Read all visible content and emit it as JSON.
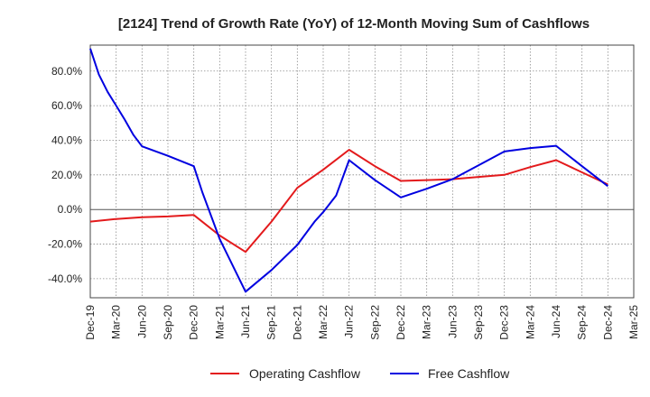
{
  "chart_data": {
    "type": "line",
    "title": "[2124]  Trend of Growth Rate (YoY) of 12-Month Moving Sum of Cashflows",
    "xlabel": "",
    "ylabel": "",
    "x": [
      "Dec-19",
      "Mar-20",
      "Jun-20",
      "Sep-20",
      "Dec-20",
      "Mar-21",
      "Jun-21",
      "Sep-21",
      "Dec-21",
      "Mar-22",
      "Jun-22",
      "Sep-22",
      "Dec-22",
      "Mar-23",
      "Jun-23",
      "Sep-23",
      "Dec-23",
      "Mar-24",
      "Jun-24",
      "Sep-24",
      "Dec-24",
      "Mar-25"
    ],
    "y_ticks": [
      80,
      60,
      40,
      20,
      0,
      -20,
      -40
    ],
    "y_tick_labels": [
      "80.0%",
      "60.0%",
      "40.0%",
      "20.0%",
      "0.0%",
      "-20.0%",
      "-40.0%"
    ],
    "ylim": [
      -51,
      95
    ],
    "grid": true,
    "legend_position": "bottom",
    "series": [
      {
        "name": "Operating Cashflow",
        "color": "#e31a1c",
        "values": [
          -7,
          -5.5,
          -4.5,
          -4,
          -3.2,
          -15,
          -24.5,
          -7,
          12.5,
          23,
          34.5,
          25,
          16.5,
          17,
          17.5,
          18.8,
          20,
          24.5,
          28.5,
          21.5,
          14.5,
          null
        ]
      },
      {
        "name": "Free Cashflow",
        "color": "#0000e0",
        "values": [
          93,
          60,
          36.5,
          31,
          25,
          -17,
          -47.5,
          -35,
          -20.5,
          -1.5,
          28.5,
          17,
          7,
          12,
          17.5,
          25.5,
          33.5,
          35.5,
          36.8,
          25,
          13.5,
          null
        ],
        "points": [
          {
            "x": 0,
            "y": 93
          },
          {
            "x": 0.33,
            "y": 78
          },
          {
            "x": 0.67,
            "y": 68
          },
          {
            "x": 1,
            "y": 60
          },
          {
            "x": 1.33,
            "y": 52
          },
          {
            "x": 1.67,
            "y": 43
          },
          {
            "x": 2,
            "y": 36.5
          },
          {
            "x": 3,
            "y": 31
          },
          {
            "x": 4,
            "y": 25
          },
          {
            "x": 4.33,
            "y": 10
          },
          {
            "x": 5,
            "y": -17
          },
          {
            "x": 6,
            "y": -47.5
          },
          {
            "x": 7,
            "y": -35
          },
          {
            "x": 8,
            "y": -20.5
          },
          {
            "x": 8.67,
            "y": -7
          },
          {
            "x": 9,
            "y": -1.5
          },
          {
            "x": 9.5,
            "y": 8
          },
          {
            "x": 10,
            "y": 28.5
          },
          {
            "x": 11,
            "y": 17
          },
          {
            "x": 12,
            "y": 7
          },
          {
            "x": 13,
            "y": 12
          },
          {
            "x": 14,
            "y": 17.5
          },
          {
            "x": 15,
            "y": 25.5
          },
          {
            "x": 16,
            "y": 33.5
          },
          {
            "x": 17,
            "y": 35.5
          },
          {
            "x": 18,
            "y": 36.8
          },
          {
            "x": 19,
            "y": 25
          },
          {
            "x": 20,
            "y": 13.5
          }
        ]
      }
    ]
  }
}
